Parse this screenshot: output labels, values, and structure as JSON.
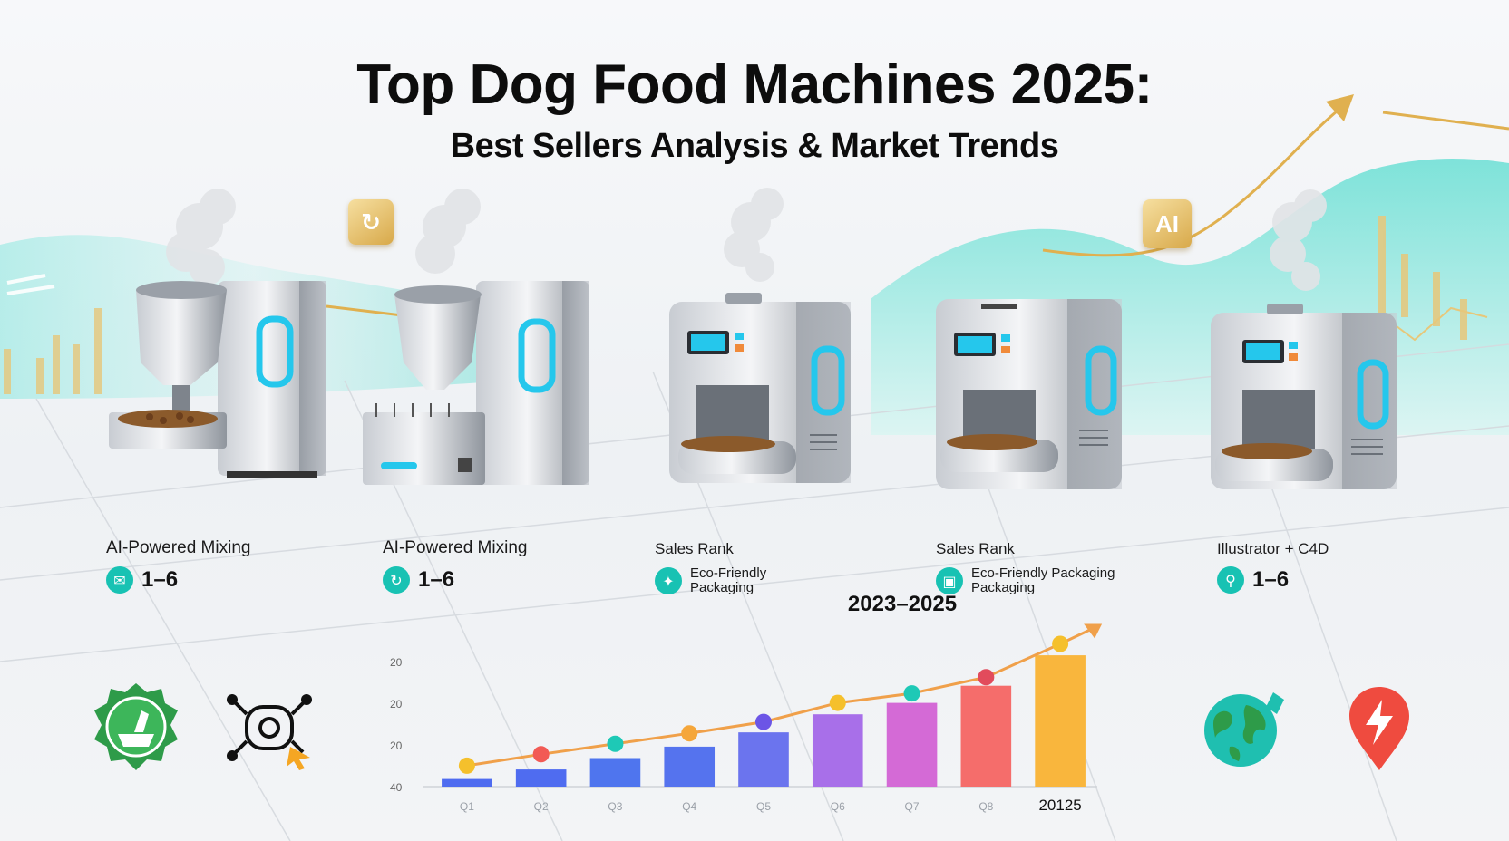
{
  "header": {
    "title": "Top Dog Food Machines 2025:",
    "subtitle": "Best Sellers Analysis & Market Trends"
  },
  "badges": {
    "left_symbol": "↻",
    "right_text": "AI"
  },
  "products": [
    {
      "label": "AI-Powered Mixing",
      "feature_type": "value",
      "feature_icon": "chat-icon",
      "feature_value": "1–6"
    },
    {
      "label": "AI-Powered Mixing",
      "feature_type": "value",
      "feature_icon": "refresh-icon",
      "feature_value": "1–6"
    },
    {
      "label": "Sales Rank",
      "feature_type": "text",
      "feature_icon": "bulb-icon",
      "feature_text_1": "Eco-Friendly",
      "feature_text_2": "Packaging"
    },
    {
      "label": "Sales Rank",
      "feature_type": "text",
      "feature_icon": "box-icon",
      "feature_text_1": "Eco-Friendly Packaging",
      "feature_text_2": "Packaging"
    },
    {
      "label": "Illustrator + C4D",
      "feature_type": "value",
      "feature_icon": "location-icon",
      "feature_value": "1–6"
    }
  ],
  "chart_data": {
    "type": "bar",
    "title": "2023–2025",
    "y_tick_labels": [
      "20",
      "20",
      "20",
      "40"
    ],
    "categories": [
      "Q1",
      "Q2",
      "Q3",
      "Q4",
      "Q5",
      "Q6",
      "Q7",
      "Q8",
      "20125"
    ],
    "values": [
      8,
      18,
      30,
      42,
      57,
      76,
      88,
      106,
      138
    ],
    "line_values": [
      22,
      34,
      45,
      56,
      68,
      88,
      98,
      115,
      150
    ],
    "ylim": [
      0,
      160
    ],
    "bar_colors": [
      "#4f6cf0",
      "#4f6cf0",
      "#4f75ee",
      "#5573ee",
      "#6b74ee",
      "#a86fe9",
      "#d46ad6",
      "#f56d6b",
      "#f9b63d"
    ],
    "point_colors": [
      "#f5c02c",
      "#f25a55",
      "#1ec9b6",
      "#f5a63a",
      "#6c55e6",
      "#f5c02c",
      "#1ec9b6",
      "#e24b5c",
      "#f5c02c"
    ],
    "grid": false,
    "legend": "none"
  },
  "colors": {
    "teal": "#3ed8c9",
    "gold": "#e0b04f",
    "steel": "#a9aeb5",
    "screen": "#25c7ec"
  }
}
